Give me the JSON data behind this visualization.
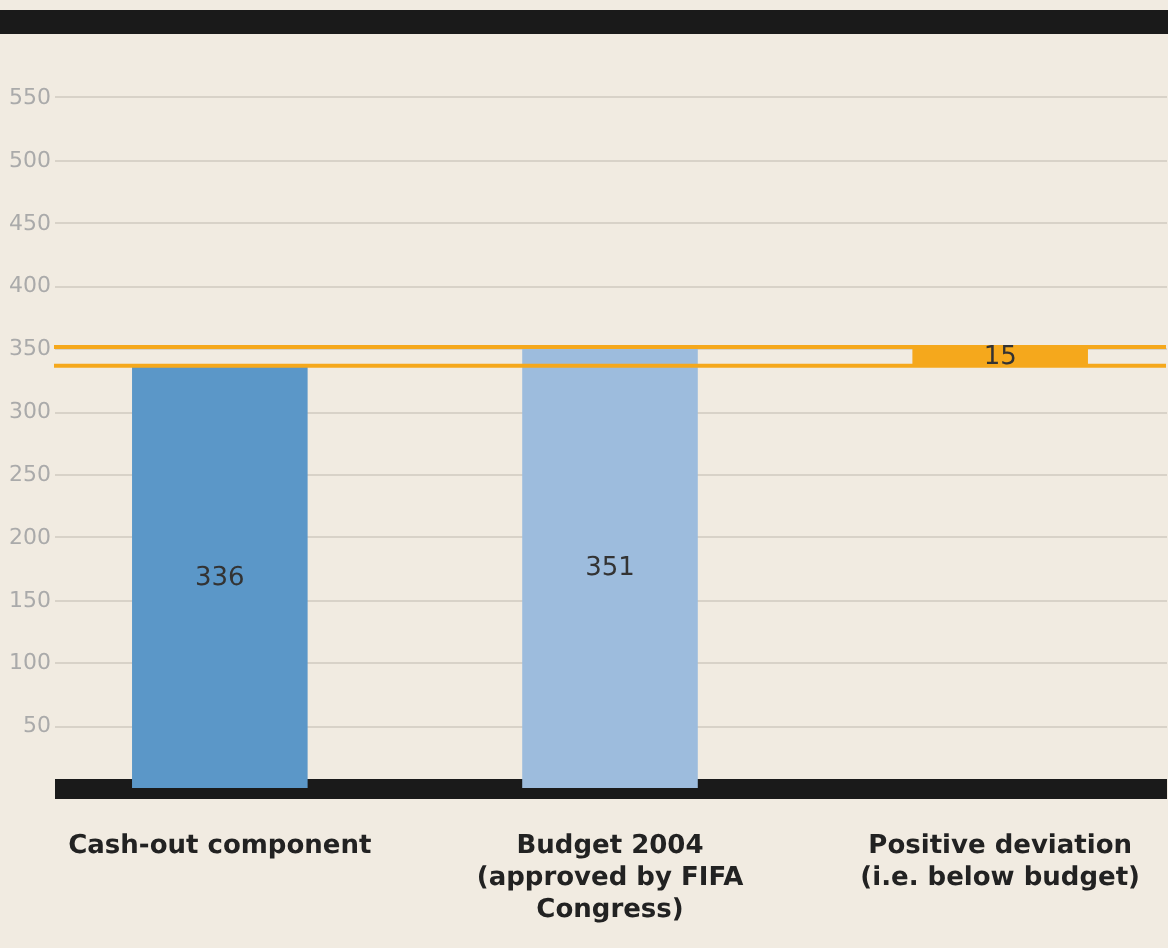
{
  "chart_data": {
    "type": "bar",
    "categories": [
      "Cash-out component",
      "Budget 2004 (approved by FIFA Congress)",
      "Positive deviation (i.e. below budget)"
    ],
    "values": [
      336,
      351,
      15
    ],
    "base": [
      0,
      0,
      336
    ],
    "colors": [
      "#5b97c8",
      "#9dbcdd",
      "#f5a81c"
    ],
    "data_labels": true,
    "ylim": [
      0,
      600
    ],
    "yticks": [
      50,
      100,
      150,
      200,
      250,
      300,
      350,
      400,
      450,
      500,
      550
    ],
    "grid": "y",
    "ref_lines": [
      {
        "axis": "y",
        "value": 336,
        "color": "#f5a81c"
      },
      {
        "axis": "y",
        "value": 351,
        "color": "#f5a81c"
      }
    ]
  }
}
